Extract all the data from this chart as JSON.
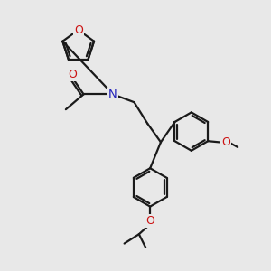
{
  "bg_color": "#e8e8e8",
  "bond_color": "#1a1a1a",
  "N_color": "#2222bb",
  "O_color": "#cc1111",
  "lw": 1.6,
  "fs": 8.5,
  "fig_size": [
    3.0,
    3.0
  ],
  "dpi": 100,
  "xlim": [
    0,
    10
  ],
  "ylim": [
    0,
    10
  ]
}
